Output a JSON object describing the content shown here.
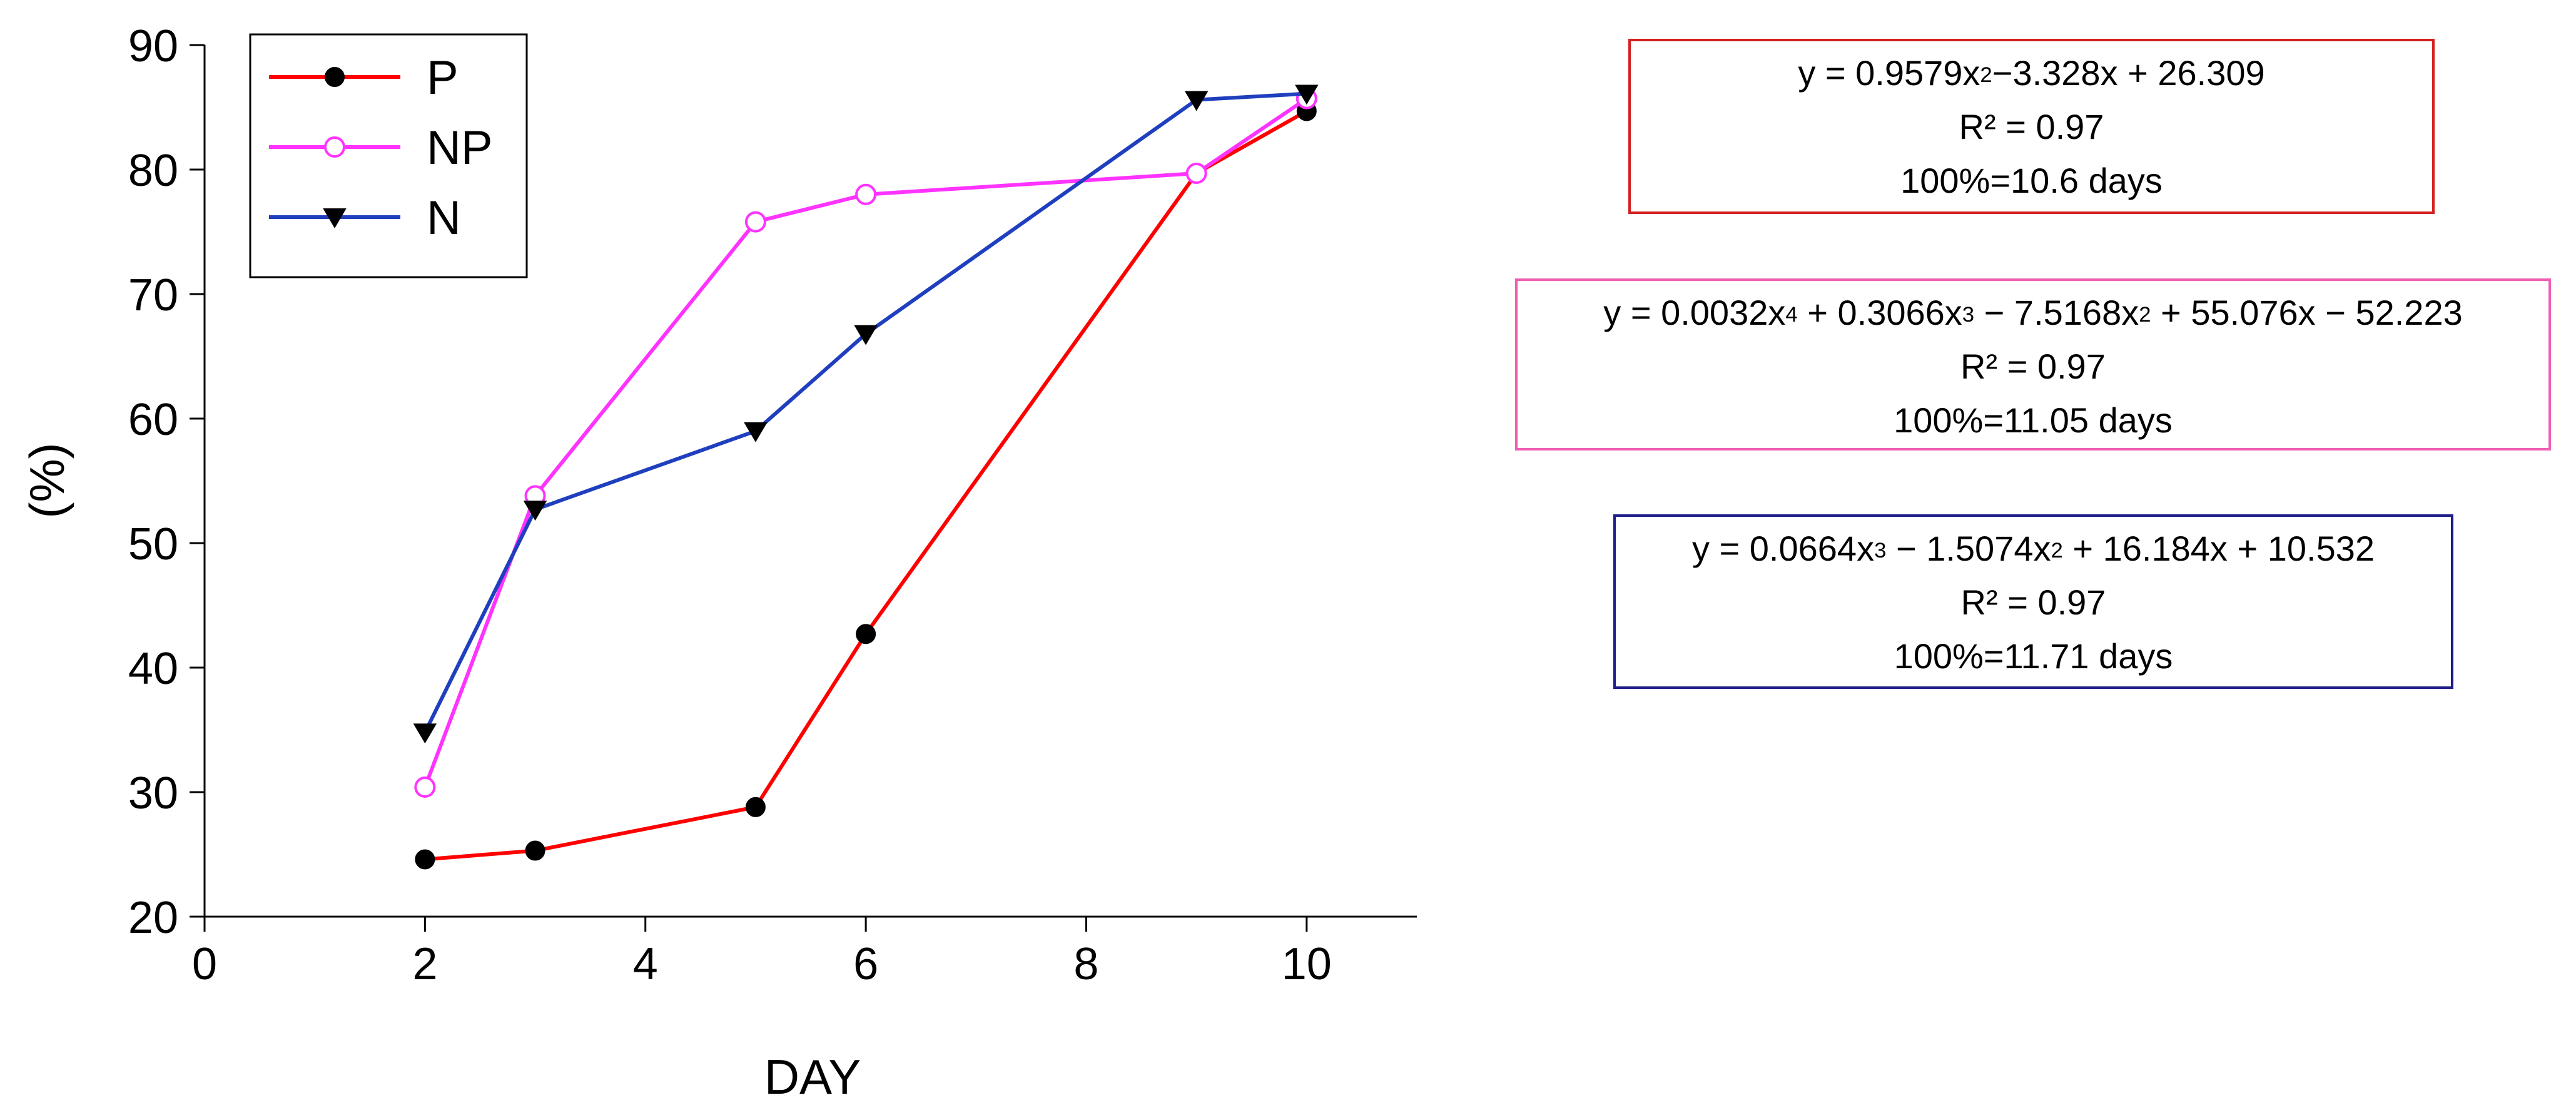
{
  "chart_data": {
    "type": "line",
    "xlabel": "DAY",
    "ylabel": "(%)",
    "xlim": [
      0,
      11
    ],
    "ylim": [
      20,
      90
    ],
    "xticks": [
      0,
      2,
      4,
      6,
      8,
      10
    ],
    "yticks": [
      20,
      30,
      40,
      50,
      60,
      70,
      80,
      90
    ],
    "grid": false,
    "legend_position": "top-left",
    "series": [
      {
        "name": "P",
        "color": "#ff0000",
        "marker": "filled-circle",
        "x": [
          2,
          3,
          5,
          6,
          9,
          10
        ],
        "y": [
          24.6,
          25.3,
          28.8,
          42.7,
          79.7,
          84.7
        ]
      },
      {
        "name": "NP",
        "color": "#ff33ff",
        "marker": "open-circle",
        "x": [
          2,
          3,
          5,
          6,
          9,
          10
        ],
        "y": [
          30.4,
          53.8,
          75.8,
          78.0,
          79.7,
          85.7
        ]
      },
      {
        "name": "N",
        "color": "#1f3fbf",
        "marker": "triangle-down",
        "x": [
          2,
          3,
          5,
          6,
          9,
          10
        ],
        "y": [
          34.8,
          52.7,
          59.0,
          66.8,
          85.6,
          86.1
        ]
      }
    ]
  },
  "equations": {
    "p": {
      "equation": "y = 0.9579x²−3.328x + 26.309",
      "r2": "R² = 0.97",
      "days": "100%=10.6 days",
      "color": "#d42020"
    },
    "np": {
      "equation": "y = 0.0032x⁴ + 0.3066x³ − 7.5168x² + 55.076x − 52.223",
      "r2": "R² = 0.97",
      "days": "100%=11.05 days",
      "color": "#ee5fb4"
    },
    "n": {
      "equation": "y = 0.0664x³ − 1.5074x² + 16.184x + 10.532",
      "r2": "R² = 0.97",
      "days": "100%=11.71 days",
      "color": "#1e1e8a"
    }
  }
}
